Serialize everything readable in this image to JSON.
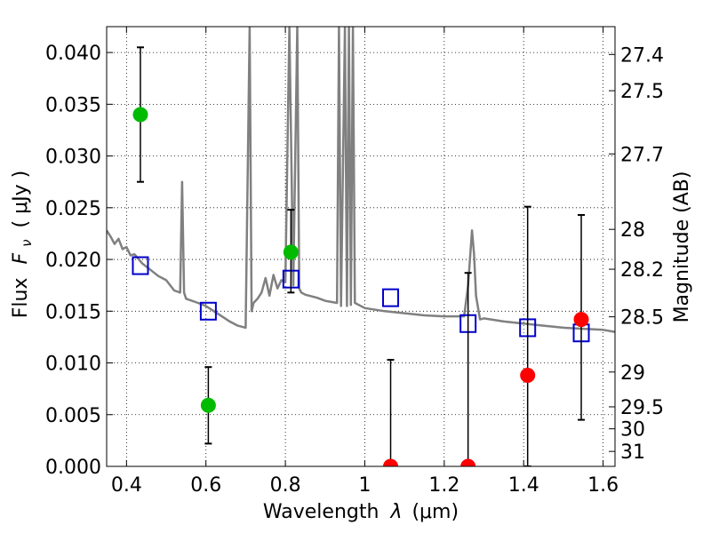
{
  "chart_data": {
    "type": "scatter",
    "xlabel_text": "Wavelength",
    "xlabel_math": "λ",
    "xlabel_unit": "(μm)",
    "ylabel_text": "Flux",
    "ylabel_math": "F",
    "ylabel_sub": "ν",
    "ylabel_unit": "( μJy )",
    "y2label": "Magnitude (AB)",
    "xlim": [
      0.35,
      1.63
    ],
    "ylim": [
      0.0,
      0.0425
    ],
    "x_ticks": [
      0.4,
      0.6,
      0.8,
      1.0,
      1.2,
      1.4,
      1.6
    ],
    "x_tick_labels": [
      "0.4",
      "0.6",
      "0.8",
      "1",
      "1.2",
      "1.4",
      "1.6"
    ],
    "y_ticks": [
      0.0,
      0.005,
      0.01,
      0.015,
      0.02,
      0.025,
      0.03,
      0.035,
      0.04
    ],
    "y_tick_labels": [
      "0.000",
      "0.005",
      "0.010",
      "0.015",
      "0.020",
      "0.025",
      "0.030",
      "0.035",
      "0.040"
    ],
    "magnitude_ticks": [
      "27.4",
      "27.5",
      "27.7",
      "28",
      "28.2",
      "28.5",
      "29",
      "29.5",
      "30",
      "31"
    ],
    "grid": true,
    "model_spectrum": {
      "color": "#808080",
      "x": [
        0.35,
        0.36,
        0.37,
        0.38,
        0.39,
        0.4,
        0.41,
        0.42,
        0.44,
        0.46,
        0.48,
        0.5,
        0.52,
        0.535,
        0.54,
        0.545,
        0.55,
        0.58,
        0.6,
        0.62,
        0.64,
        0.66,
        0.68,
        0.7,
        0.71,
        0.715,
        0.72,
        0.73,
        0.74,
        0.75,
        0.76,
        0.77,
        0.78,
        0.79,
        0.8,
        0.81,
        0.82,
        0.83,
        0.835,
        0.84,
        0.85,
        0.88,
        0.9,
        0.93,
        0.935,
        0.94,
        0.95,
        0.955,
        0.96,
        0.965,
        0.97,
        0.975,
        0.98,
        1.0,
        1.05,
        1.1,
        1.15,
        1.2,
        1.25,
        1.26,
        1.27,
        1.275,
        1.28,
        1.29,
        1.3,
        1.35,
        1.4,
        1.45,
        1.5,
        1.55,
        1.6,
        1.63
      ],
      "y": [
        0.0228,
        0.0222,
        0.0215,
        0.022,
        0.021,
        0.0212,
        0.0204,
        0.0205,
        0.0196,
        0.019,
        0.0184,
        0.018,
        0.017,
        0.0168,
        0.0275,
        0.0168,
        0.0162,
        0.0158,
        0.0155,
        0.015,
        0.0145,
        0.014,
        0.0136,
        0.0134,
        0.0425,
        0.015,
        0.0158,
        0.0162,
        0.0168,
        0.0182,
        0.0165,
        0.0185,
        0.0172,
        0.018,
        0.0178,
        0.0425,
        0.0175,
        0.0425,
        0.0172,
        0.0168,
        0.0166,
        0.0163,
        0.016,
        0.0158,
        0.0425,
        0.0155,
        0.0425,
        0.0155,
        0.0425,
        0.0156,
        0.0425,
        0.0158,
        0.0157,
        0.0153,
        0.015,
        0.0148,
        0.0146,
        0.0145,
        0.0145,
        0.0175,
        0.0228,
        0.0205,
        0.0165,
        0.0142,
        0.0143,
        0.014,
        0.0138,
        0.0136,
        0.0134,
        0.0133,
        0.0132,
        0.013
      ]
    },
    "synthetic_photometry": {
      "color": "#0000cc",
      "x": [
        0.435,
        0.606,
        0.814,
        1.065,
        1.26,
        1.41,
        1.545
      ],
      "y": [
        0.0194,
        0.015,
        0.0181,
        0.0163,
        0.0138,
        0.0134,
        0.0129
      ]
    },
    "observed_green": {
      "color": "#00bb00",
      "x": [
        0.435,
        0.606,
        0.814
      ],
      "y": [
        0.034,
        0.0059,
        0.0207
      ],
      "err_low": [
        0.0275,
        0.0022,
        0.0168
      ],
      "err_high": [
        0.0405,
        0.0096,
        0.0248
      ]
    },
    "observed_red": {
      "color": "#ff0000",
      "x": [
        1.065,
        1.26,
        1.41,
        1.545
      ],
      "y": [
        0.0,
        0.0,
        0.0088,
        0.0142
      ],
      "err_low": [
        0.0,
        0.0,
        0.0,
        0.0045
      ],
      "err_high": [
        0.0103,
        0.0187,
        0.0251,
        0.0243
      ]
    }
  }
}
